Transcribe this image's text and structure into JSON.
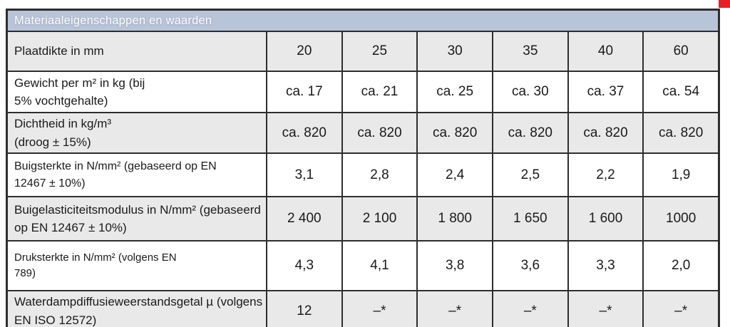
{
  "decorations": {
    "corner_marker_color": "#ec1c24"
  },
  "colors": {
    "header_bg": "#b8c4d8",
    "shaded_row_bg": "#e9e9e9",
    "border": "#2e2e2e"
  },
  "table": {
    "title": "Materiaaleigenschappen en waarden",
    "rows": [
      {
        "label_line1": "Plaatdikte in mm",
        "values": [
          "20",
          "25",
          "30",
          "35",
          "40",
          "60"
        ]
      },
      {
        "label_line1": "Gewicht per m² in kg (bij",
        "label_line2": "5% vochtgehalte)",
        "values": [
          "ca. 17",
          "ca. 21",
          "ca. 25",
          "ca. 30",
          "ca. 37",
          "ca. 54"
        ]
      },
      {
        "label_line1": "Dichtheid in kg/m³",
        "label_line2": "(droog ± 15%)",
        "values": [
          "ca. 820",
          "ca. 820",
          "ca. 820",
          "ca. 820",
          "ca. 820",
          "ca. 820"
        ]
      },
      {
        "label_line1": "Buigsterkte in N/mm² (gebaseerd op EN",
        "label_line2": "12467 ± 10%)",
        "values": [
          "3,1",
          "2,8",
          "2,4",
          "2,5",
          "2,2",
          "1,9"
        ]
      },
      {
        "label_line1": "Buigelasticiteitsmodulus in N/mm² (gebaseerd",
        "label_line2": "op EN 12467 ± 10%)",
        "values": [
          "2 400",
          "2 100",
          "1 800",
          "1 650",
          "1 600",
          "1000"
        ]
      },
      {
        "label_line1": "Druksterkte in N/mm² (volgens EN",
        "label_line2": "789)",
        "values": [
          "4,3",
          "4,1",
          "3,8",
          "3,6",
          "3,3",
          "2,0"
        ]
      },
      {
        "label_line1": "Waterdampdiffusieweerstandsgetal µ (volgens",
        "label_line2": "EN ISO 12572)",
        "values": [
          "12",
          "–*",
          "–*",
          "–*",
          "–*",
          "–*"
        ]
      }
    ]
  }
}
